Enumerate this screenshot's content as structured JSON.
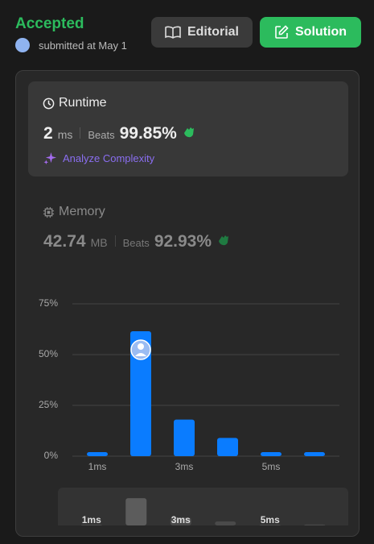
{
  "header": {
    "status": "Accepted",
    "submitted": "submitted at May 1",
    "editorial": "Editorial",
    "solution": "Solution"
  },
  "runtime": {
    "title": "Runtime",
    "value": "2",
    "unit": "ms",
    "beats_label": "Beats",
    "beats": "99.85%",
    "analyze": "Analyze Complexity"
  },
  "memory": {
    "title": "Memory",
    "value": "42.74",
    "unit": "MB",
    "beats_label": "Beats",
    "beats": "92.93%"
  },
  "chart_data": {
    "type": "bar",
    "categories": [
      "1ms",
      null,
      "3ms",
      null,
      "5ms",
      null
    ],
    "values": [
      2,
      61.5,
      18,
      9,
      2,
      2
    ],
    "color": "#0a7cff",
    "ylim": [
      0,
      75
    ],
    "yticks": [
      {
        "value": 0,
        "label": "0%"
      },
      {
        "value": 25,
        "label": "25%"
      },
      {
        "value": 50,
        "label": "50%"
      },
      {
        "value": 75,
        "label": "75%"
      }
    ],
    "grid": true
  }
}
